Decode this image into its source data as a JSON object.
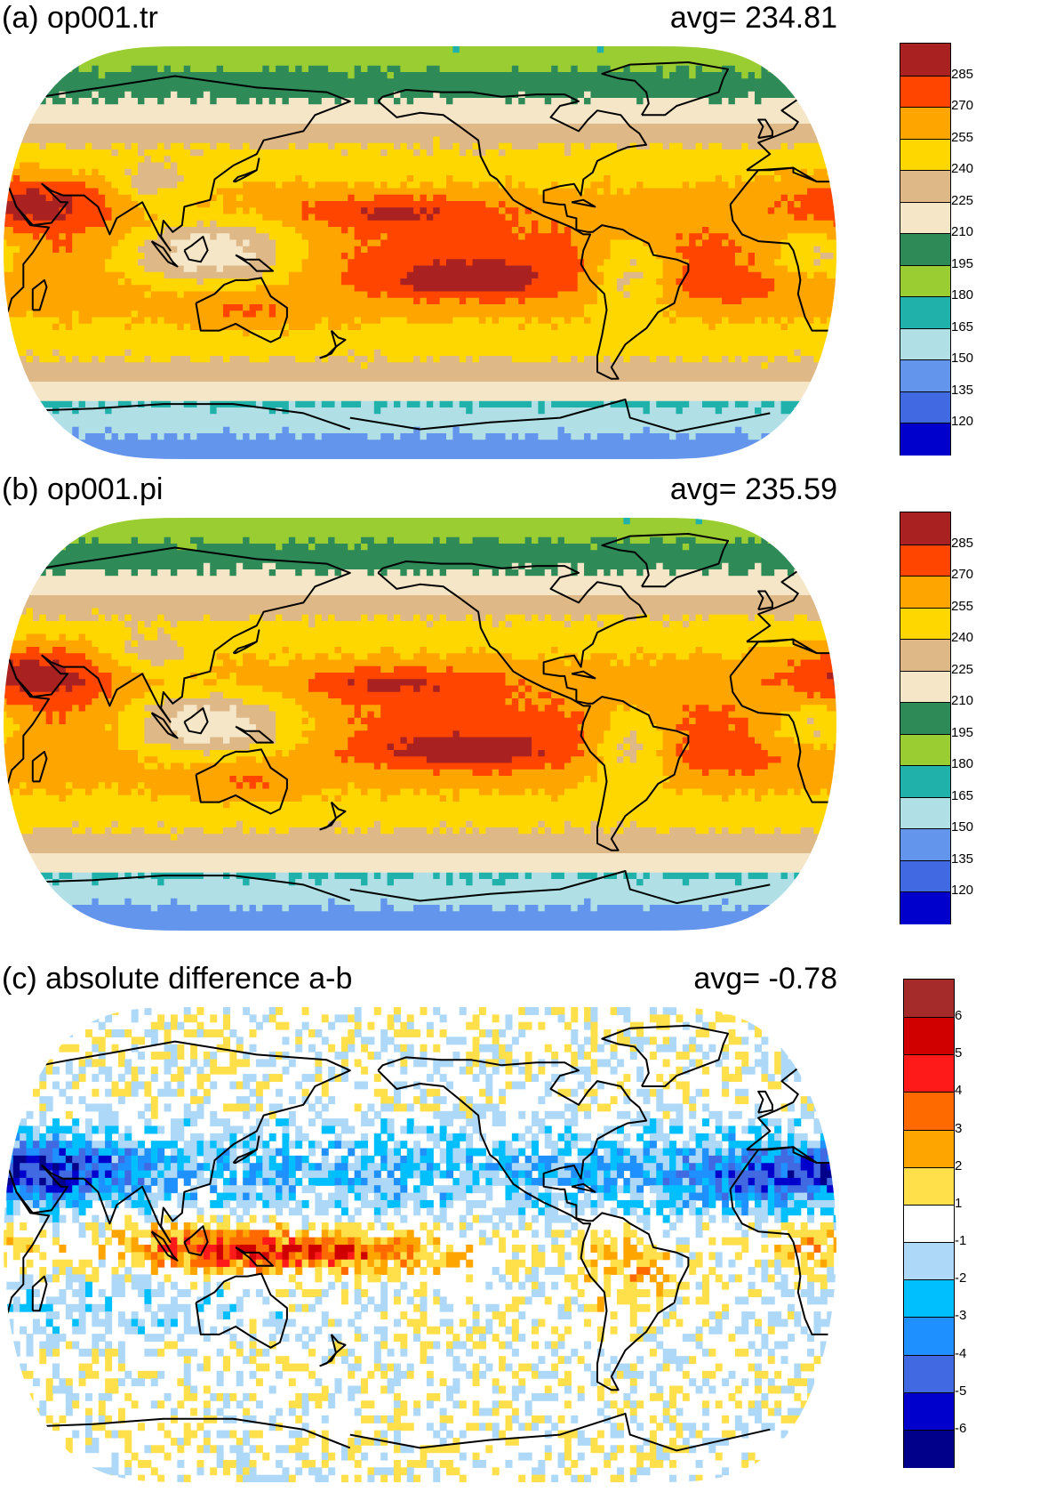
{
  "panels": [
    {
      "title": "(a) op001.tr",
      "avg_label": "avg=  234.81",
      "field": "tr",
      "colorbar": {
        "labels": [
          "285",
          "270",
          "255",
          "240",
          "225",
          "210",
          "195",
          "180",
          "165",
          "150",
          "135",
          "120"
        ],
        "colors": [
          "#aa2121",
          "#ff4500",
          "#ffa500",
          "#ffd700",
          "#deb887",
          "#f5e6c8",
          "#2e8b57",
          "#9acd32",
          "#20b2aa",
          "#b0e0e6",
          "#6495ed",
          "#4169e1",
          "#0000cd"
        ]
      }
    },
    {
      "title": "(b) op001.pi",
      "avg_label": "avg=  235.59",
      "field": "pi",
      "colorbar": {
        "labels": [
          "285",
          "270",
          "255",
          "240",
          "225",
          "210",
          "195",
          "180",
          "165",
          "150",
          "135",
          "120"
        ],
        "colors": [
          "#aa2121",
          "#ff4500",
          "#ffa500",
          "#ffd700",
          "#deb887",
          "#f5e6c8",
          "#2e8b57",
          "#9acd32",
          "#20b2aa",
          "#b0e0e6",
          "#6495ed",
          "#4169e1",
          "#0000cd"
        ]
      }
    },
    {
      "title": "(c) absolute difference a-b",
      "avg_label": "avg=   -0.78",
      "field": "diff",
      "colorbar": {
        "labels": [
          "6",
          "5",
          "4",
          "3",
          "2",
          "1",
          "-1",
          "-2",
          "-3",
          "-4",
          "-5",
          "-6"
        ],
        "colors": [
          "#a52a2a",
          "#d00000",
          "#ff1a1a",
          "#ff6a00",
          "#ffa500",
          "#ffe04a",
          "#ffffff",
          "#add8f7",
          "#00bfff",
          "#1e90ff",
          "#4169e1",
          "#0000cd",
          "#00008b"
        ]
      }
    }
  ]
}
